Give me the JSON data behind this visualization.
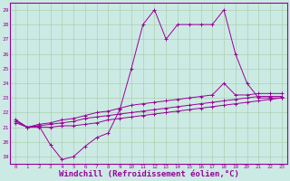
{
  "background_color": "#cceae4",
  "line_color": "#990099",
  "grid_color": "#aaccaa",
  "xlabel": "Windchill (Refroidissement éolien,°C)",
  "xlabel_fontsize": 6.5,
  "ylabel_ticks": [
    19,
    20,
    21,
    22,
    23,
    24,
    25,
    26,
    27,
    28,
    29
  ],
  "xlabel_ticks": [
    0,
    1,
    2,
    3,
    4,
    5,
    6,
    7,
    8,
    9,
    10,
    11,
    12,
    13,
    14,
    15,
    16,
    17,
    18,
    19,
    20,
    21,
    22,
    23
  ],
  "ylim": [
    18.5,
    29.5
  ],
  "xlim": [
    -0.5,
    23.5
  ],
  "series1_x": [
    0,
    1,
    2,
    3,
    4,
    5,
    6,
    7,
    8,
    9,
    10,
    11,
    12,
    13,
    14,
    15,
    16,
    17,
    18,
    19,
    20,
    21,
    22,
    23
  ],
  "series1_y": [
    21.5,
    21.0,
    21.1,
    19.8,
    18.8,
    19.0,
    19.7,
    20.3,
    20.6,
    22.2,
    25.0,
    28.0,
    29.0,
    27.0,
    28.0,
    28.0,
    28.0,
    28.0,
    29.0,
    26.0,
    24.0,
    23.0,
    23.0,
    23.0
  ],
  "series2_x": [
    0,
    1,
    2,
    3,
    4,
    5,
    6,
    7,
    8,
    9,
    10,
    11,
    12,
    13,
    14,
    15,
    16,
    17,
    18,
    19,
    20,
    21,
    22,
    23
  ],
  "series2_y": [
    21.5,
    21.0,
    21.2,
    21.3,
    21.5,
    21.6,
    21.8,
    22.0,
    22.1,
    22.3,
    22.5,
    22.6,
    22.7,
    22.8,
    22.9,
    23.0,
    23.1,
    23.2,
    24.0,
    23.2,
    23.2,
    23.3,
    23.3,
    23.3
  ],
  "series3_x": [
    0,
    1,
    2,
    3,
    4,
    5,
    6,
    7,
    8,
    9,
    10,
    11,
    12,
    13,
    14,
    15,
    16,
    17,
    18,
    19,
    20,
    21,
    22,
    23
  ],
  "series3_y": [
    21.4,
    21.0,
    21.1,
    21.2,
    21.3,
    21.4,
    21.6,
    21.7,
    21.8,
    21.9,
    22.0,
    22.1,
    22.2,
    22.3,
    22.4,
    22.5,
    22.6,
    22.7,
    22.8,
    22.9,
    23.0,
    23.1,
    23.1,
    23.1
  ],
  "series4_x": [
    0,
    1,
    2,
    3,
    4,
    5,
    6,
    7,
    8,
    9,
    10,
    11,
    12,
    13,
    14,
    15,
    16,
    17,
    18,
    19,
    20,
    21,
    22,
    23
  ],
  "series4_y": [
    21.3,
    21.0,
    21.0,
    21.0,
    21.1,
    21.1,
    21.2,
    21.3,
    21.5,
    21.6,
    21.7,
    21.8,
    21.9,
    22.0,
    22.1,
    22.2,
    22.3,
    22.4,
    22.5,
    22.6,
    22.7,
    22.8,
    22.9,
    23.0
  ]
}
